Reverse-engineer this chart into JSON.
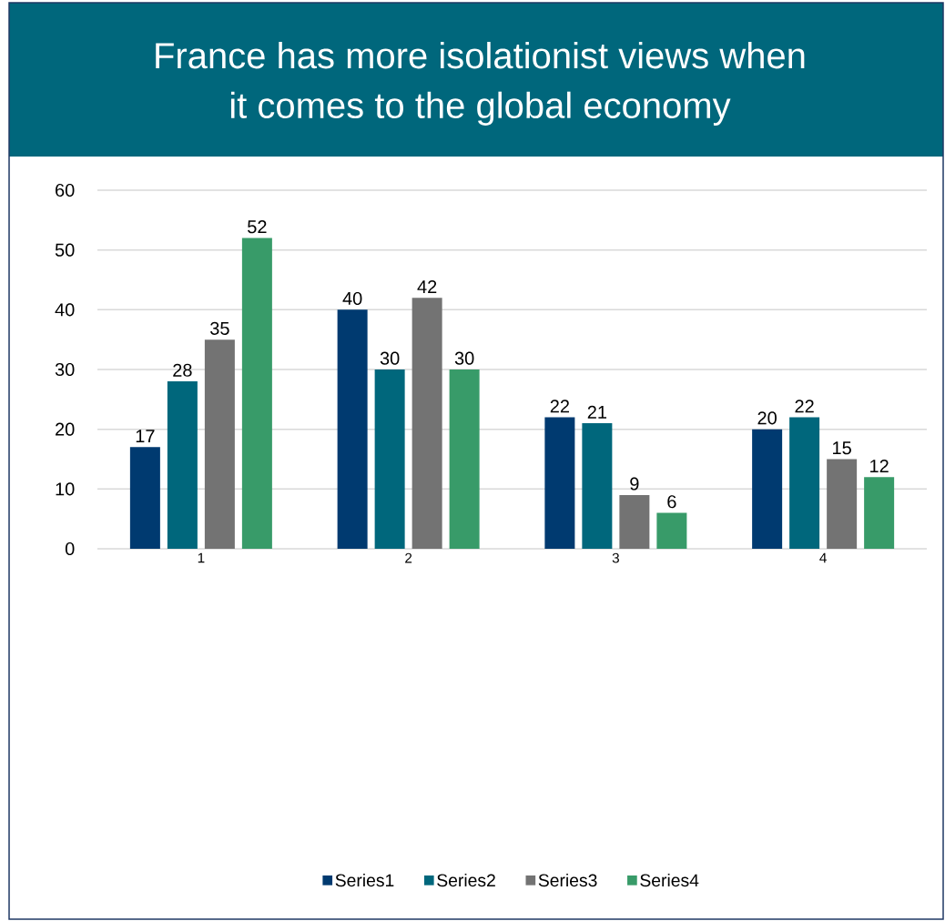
{
  "chart_data": {
    "type": "bar",
    "title": "France has more isolationist views when it comes to the global economy",
    "categories": [
      "1",
      "2",
      "3",
      "4"
    ],
    "series": [
      {
        "name": "Series1",
        "color": "#003a70",
        "values": [
          17,
          40,
          22,
          20
        ]
      },
      {
        "name": "Series2",
        "color": "#00677c",
        "values": [
          28,
          30,
          21,
          22
        ]
      },
      {
        "name": "Series3",
        "color": "#737373",
        "values": [
          35,
          42,
          9,
          15
        ]
      },
      {
        "name": "Series4",
        "color": "#389b69",
        "values": [
          52,
          30,
          6,
          12
        ]
      }
    ],
    "ylim": [
      0,
      60
    ],
    "yticks": [
      0,
      10,
      20,
      30,
      40,
      50,
      60
    ],
    "grid": "y",
    "legend": "bottom",
    "data_labels": true
  }
}
